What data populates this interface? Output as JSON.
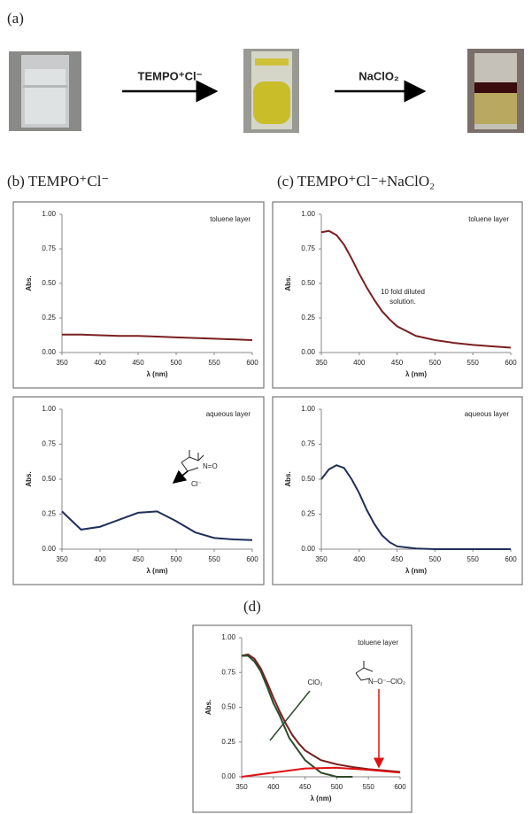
{
  "panels": {
    "a": "(a)",
    "b": "(b) TEMPO⁺Cl⁻",
    "c": "(c) TEMPO⁺Cl⁻+NaClO₂",
    "d": "(d)"
  },
  "scheme": {
    "reagent_1": "TEMPO⁺Cl⁻",
    "reagent_2": "NaClO₂"
  },
  "chart_data": [
    {
      "type": "line",
      "annotation": "toluene layer",
      "xlabel": "λ (nm)",
      "ylabel": "Abs.",
      "xlim": [
        350,
        600
      ],
      "ylim": [
        0,
        1
      ],
      "xticks": [
        350,
        400,
        450,
        500,
        550,
        600
      ],
      "yticks": [
        {
          "value": 0,
          "label": "0.00"
        },
        {
          "value": 0.25,
          "label": "0.25"
        },
        {
          "value": 0.5,
          "label": "0.50"
        },
        {
          "value": 0.75,
          "label": "0.75"
        },
        {
          "value": 1,
          "label": "1.00"
        }
      ],
      "series": [
        {
          "color": "#7a1f1f",
          "x": [
            350,
            375,
            400,
            425,
            450,
            475,
            500,
            525,
            550,
            575,
            600
          ],
          "values": [
            0.13,
            0.13,
            0.125,
            0.12,
            0.12,
            0.115,
            0.11,
            0.105,
            0.1,
            0.095,
            0.09
          ]
        }
      ]
    },
    {
      "type": "line",
      "annotation": "toluene layer",
      "xlabel": "λ (nm)",
      "ylabel": "Abs.",
      "xlim": [
        350,
        600
      ],
      "ylim": [
        0,
        1
      ],
      "xticks": [
        350,
        400,
        450,
        500,
        550,
        600
      ],
      "yticks": [
        {
          "value": 0,
          "label": "0.00"
        },
        {
          "value": 0.25,
          "label": "0.25"
        },
        {
          "value": 0.5,
          "label": "0.50"
        },
        {
          "value": 0.75,
          "label": "0.75"
        },
        {
          "value": 1,
          "label": "1.00"
        }
      ],
      "notes": [
        "10 fold diluted",
        "solution."
      ],
      "series": [
        {
          "color": "#7a1f1f",
          "x": [
            350,
            360,
            370,
            380,
            390,
            400,
            410,
            420,
            430,
            440,
            450,
            475,
            500,
            525,
            550,
            575,
            600
          ],
          "values": [
            0.87,
            0.88,
            0.85,
            0.78,
            0.68,
            0.57,
            0.47,
            0.38,
            0.3,
            0.24,
            0.19,
            0.12,
            0.09,
            0.07,
            0.055,
            0.045,
            0.035
          ]
        }
      ]
    },
    {
      "type": "line",
      "annotation": "aqueous layer",
      "xlabel": "λ (nm)",
      "ylabel": "Abs.",
      "xlim": [
        350,
        600
      ],
      "ylim": [
        0,
        1
      ],
      "xticks": [
        350,
        400,
        450,
        500,
        550,
        600
      ],
      "yticks": [
        {
          "value": 0,
          "label": "0.00"
        },
        {
          "value": 0.25,
          "label": "0.25"
        },
        {
          "value": 0.5,
          "label": "0.50"
        },
        {
          "value": 0.75,
          "label": "0.75"
        },
        {
          "value": 1,
          "label": "1.00"
        }
      ],
      "notes": [
        "N=O",
        "Cl⁻"
      ],
      "series": [
        {
          "color": "#1f2f5a",
          "x": [
            350,
            375,
            400,
            425,
            450,
            475,
            500,
            525,
            550,
            575,
            600
          ],
          "values": [
            0.27,
            0.14,
            0.16,
            0.21,
            0.26,
            0.27,
            0.2,
            0.12,
            0.08,
            0.07,
            0.065
          ]
        }
      ]
    },
    {
      "type": "line",
      "annotation": "aqueous layer",
      "xlabel": "λ (nm)",
      "ylabel": "Abs.",
      "xlim": [
        350,
        600
      ],
      "ylim": [
        0,
        1
      ],
      "xticks": [
        350,
        400,
        450,
        500,
        550,
        600
      ],
      "yticks": [
        {
          "value": 0,
          "label": "0.00"
        },
        {
          "value": 0.25,
          "label": "0.25"
        },
        {
          "value": 0.5,
          "label": "0.50"
        },
        {
          "value": 0.75,
          "label": "0.75"
        },
        {
          "value": 1,
          "label": "1.00"
        }
      ],
      "series": [
        {
          "color": "#1f2f5a",
          "x": [
            350,
            360,
            370,
            380,
            390,
            400,
            410,
            420,
            430,
            440,
            450,
            475,
            500,
            550,
            600
          ],
          "values": [
            0.5,
            0.57,
            0.6,
            0.58,
            0.5,
            0.4,
            0.28,
            0.18,
            0.1,
            0.05,
            0.02,
            0.005,
            0,
            0,
            0
          ]
        }
      ]
    },
    {
      "type": "line",
      "annotation": "toluene layer",
      "xlabel": "λ (nm)",
      "ylabel": "Abs.",
      "xlim": [
        350,
        600
      ],
      "ylim": [
        0,
        1
      ],
      "xticks": [
        350,
        400,
        450,
        500,
        550,
        600
      ],
      "yticks": [
        {
          "value": 0,
          "label": "0.00"
        },
        {
          "value": 0.25,
          "label": "0.25"
        },
        {
          "value": 0.5,
          "label": "0.50"
        },
        {
          "value": 0.75,
          "label": "0.75"
        },
        {
          "value": 1,
          "label": "1.00"
        }
      ],
      "notes": [
        "ClO₂",
        "N–O⁻–ClO₂"
      ],
      "series": [
        {
          "color": "#7a1f1f",
          "x": [
            350,
            360,
            370,
            380,
            390,
            400,
            410,
            420,
            430,
            440,
            450,
            475,
            500,
            525,
            550,
            575,
            600
          ],
          "values": [
            0.87,
            0.88,
            0.85,
            0.78,
            0.68,
            0.57,
            0.47,
            0.38,
            0.3,
            0.24,
            0.19,
            0.12,
            0.09,
            0.07,
            0.055,
            0.045,
            0.035
          ]
        },
        {
          "color": "#2f4a2a",
          "x": [
            350,
            360,
            370,
            380,
            390,
            400,
            410,
            425,
            450,
            475,
            500,
            525
          ],
          "values": [
            0.87,
            0.87,
            0.83,
            0.76,
            0.65,
            0.53,
            0.44,
            0.28,
            0.12,
            0.03,
            0,
            0
          ]
        },
        {
          "color": "#e01010",
          "x": [
            350,
            375,
            400,
            450,
            500,
            550,
            600
          ],
          "values": [
            0,
            0.015,
            0.03,
            0.06,
            0.065,
            0.05,
            0.03
          ]
        }
      ]
    }
  ]
}
